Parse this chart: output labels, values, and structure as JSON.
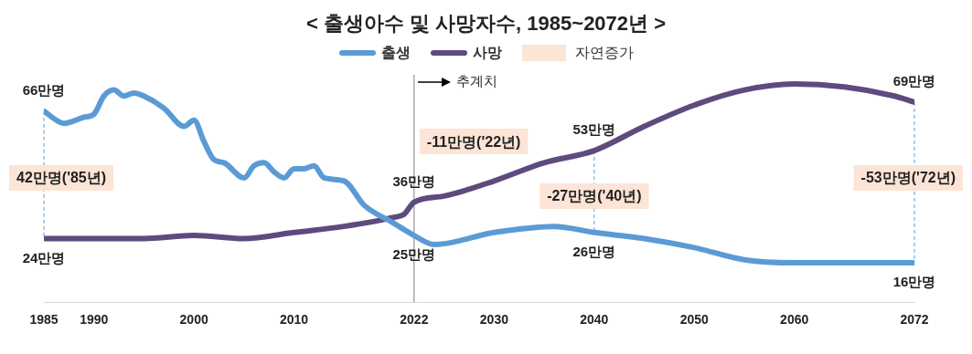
{
  "chart_data": {
    "type": "line",
    "title": "< 출생아수 및 사망자수, 1985~2072년 >",
    "xlim": [
      1985,
      2072
    ],
    "xticks": [
      1985,
      1990,
      2000,
      2010,
      2022,
      2030,
      2040,
      2050,
      2060,
      2072
    ],
    "ylim": [
      3,
      78
    ],
    "grid": false,
    "legend": "top",
    "marker": "none",
    "line_style": "solid",
    "series": [
      {
        "name": "출생",
        "color": "#5b9bd5",
        "x": [
          1985,
          1987,
          1989,
          1990,
          1991,
          1992,
          1993,
          1994,
          1995,
          1997,
          1999,
          2000,
          2001,
          2002,
          2003,
          2005,
          2006,
          2007,
          2008,
          2009,
          2010,
          2011,
          2012,
          2013,
          2015,
          2017,
          2020,
          2022,
          2024,
          2030,
          2036,
          2040,
          2045,
          2050,
          2055,
          2060,
          2072
        ],
        "values": [
          66,
          62,
          64,
          65,
          71,
          73,
          71,
          72,
          71,
          67,
          61,
          63,
          56,
          50,
          49,
          44,
          48,
          49,
          46,
          44,
          47,
          47,
          48,
          44,
          43,
          35,
          29,
          25,
          22,
          26,
          28,
          26,
          24,
          21,
          17,
          16,
          16
        ],
        "value_labels": [
          "66만명",
          null,
          null,
          null,
          null,
          null,
          null,
          null,
          null,
          null,
          null,
          null,
          null,
          null,
          null,
          null,
          null,
          null,
          null,
          null,
          null,
          null,
          null,
          null,
          null,
          null,
          null,
          "25만명",
          null,
          null,
          null,
          "26만명",
          null,
          null,
          null,
          null,
          "16만명"
        ]
      },
      {
        "name": "사망",
        "color": "#5e4b7e",
        "x": [
          1985,
          1990,
          1995,
          2000,
          2005,
          2010,
          2015,
          2020,
          2021,
          2022,
          2025,
          2030,
          2035,
          2040,
          2045,
          2050,
          2055,
          2060,
          2065,
          2070,
          2072
        ],
        "values": [
          24,
          24,
          24,
          25,
          24,
          26,
          28,
          31,
          32,
          36,
          38,
          43,
          49,
          53,
          61,
          68,
          73,
          75,
          74,
          71,
          69
        ],
        "value_labels": [
          "24만명",
          null,
          null,
          null,
          null,
          null,
          null,
          null,
          null,
          "36만명",
          null,
          null,
          null,
          "53만명",
          null,
          null,
          null,
          null,
          null,
          null,
          "69만명"
        ]
      }
    ],
    "ref_lines": [
      {
        "axis": "x",
        "value": 2022,
        "label": "추계치",
        "color": "#7f7f7f",
        "line_style": "solid"
      },
      {
        "axis": "x",
        "value": 1985,
        "color": "#5b9bd5",
        "line_style": "dashed"
      },
      {
        "axis": "x",
        "value": 2040,
        "color": "#5b9bd5",
        "line_style": "dashed"
      },
      {
        "axis": "x",
        "value": 2072,
        "color": "#5b9bd5",
        "line_style": "dashed"
      }
    ],
    "annotations": [
      "자연증가",
      {
        "text": "42만명('85년)",
        "x": 1985,
        "y": 44
      },
      {
        "text": "-11만명('22년)",
        "x": 2022,
        "y": 56
      },
      {
        "text": "-27만명('40년)",
        "x": 2040,
        "y": 38
      },
      {
        "text": "-53만명('72년)",
        "x": 2072,
        "y": 44
      }
    ]
  }
}
